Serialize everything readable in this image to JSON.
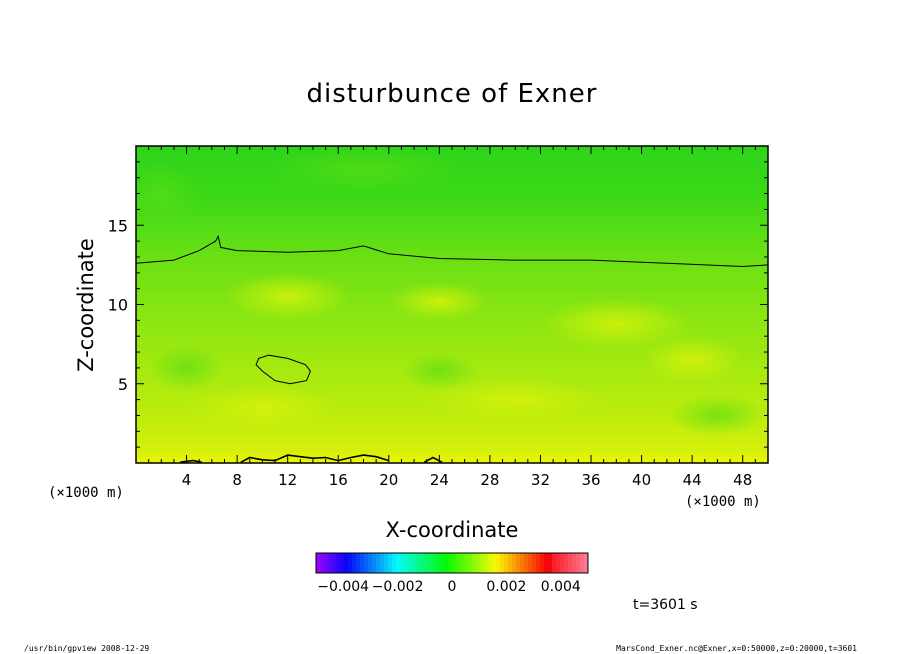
{
  "chart_data": {
    "type": "heatmap",
    "title": "disturbunce of Exner",
    "xlabel": "X-coordinate",
    "ylabel": "Z-coordinate",
    "x_unit_left": "(×1000 m)",
    "x_unit_right": "(×1000 m)",
    "xlim": [
      0,
      50
    ],
    "ylim": [
      0,
      20
    ],
    "x_ticks": [
      4,
      8,
      12,
      16,
      20,
      24,
      28,
      32,
      36,
      40,
      44,
      48
    ],
    "x_tick_labels": [
      "4",
      "8",
      "12",
      "16",
      "20",
      "24",
      "28",
      "32",
      "36",
      "40",
      "44",
      "48"
    ],
    "y_ticks": [
      5,
      10,
      15
    ],
    "y_tick_labels": [
      "5",
      "10",
      "15"
    ],
    "colorbar": {
      "range": [
        -0.005,
        0.005
      ],
      "ticks": [
        -0.004,
        -0.002,
        0,
        0.002,
        0.004
      ],
      "tick_labels": [
        "−0.004",
        "−0.002",
        "0",
        "0.002",
        "0.004"
      ]
    },
    "contours": [
      {
        "level": "upper",
        "points": [
          [
            0,
            12.6
          ],
          [
            3,
            12.8
          ],
          [
            5,
            13.4
          ],
          [
            6.3,
            14.0
          ],
          [
            6.5,
            14.3
          ],
          [
            6.7,
            13.6
          ],
          [
            8,
            13.4
          ],
          [
            12,
            13.3
          ],
          [
            16,
            13.4
          ],
          [
            18,
            13.7
          ],
          [
            20,
            13.2
          ],
          [
            24,
            12.9
          ],
          [
            30,
            12.8
          ],
          [
            36,
            12.8
          ],
          [
            42,
            12.6
          ],
          [
            48,
            12.4
          ],
          [
            50,
            12.5
          ]
        ]
      },
      {
        "level": "closed",
        "closed": true,
        "points": [
          [
            9.7,
            6.6
          ],
          [
            10.5,
            6.8
          ],
          [
            12,
            6.6
          ],
          [
            13.4,
            6.2
          ],
          [
            13.8,
            5.8
          ],
          [
            13.5,
            5.2
          ],
          [
            12.2,
            5.0
          ],
          [
            11,
            5.2
          ],
          [
            10,
            5.8
          ],
          [
            9.5,
            6.2
          ]
        ]
      },
      {
        "level": "bottom",
        "points": [
          [
            3.5,
            0.05
          ],
          [
            4.5,
            0.15
          ],
          [
            5.2,
            0.05
          ]
        ]
      },
      {
        "level": "bottom",
        "points": [
          [
            8.3,
            0.05
          ],
          [
            9,
            0.35
          ],
          [
            10,
            0.2
          ],
          [
            11,
            0.15
          ],
          [
            12,
            0.5
          ],
          [
            13,
            0.4
          ],
          [
            14,
            0.3
          ],
          [
            15,
            0.35
          ],
          [
            16,
            0.15
          ],
          [
            17,
            0.35
          ],
          [
            18,
            0.5
          ],
          [
            19,
            0.4
          ],
          [
            20,
            0.15
          ]
        ]
      },
      {
        "level": "bottom",
        "points": [
          [
            22.8,
            0.05
          ],
          [
            23.5,
            0.35
          ],
          [
            24.2,
            0.05
          ]
        ]
      }
    ],
    "time_label": "t=3601 s"
  },
  "footer": {
    "left": "/usr/bin/gpview   2008-12-29",
    "right": "MarsCond_Exner.nc@Exner,x=0:50000,z=0:20000,t=3601"
  },
  "colors": {
    "field_top": "#2ad81a",
    "field_middle": "#8ee80e",
    "field_lower": "#c2ee0c",
    "field_bottom": "#e8f206"
  }
}
